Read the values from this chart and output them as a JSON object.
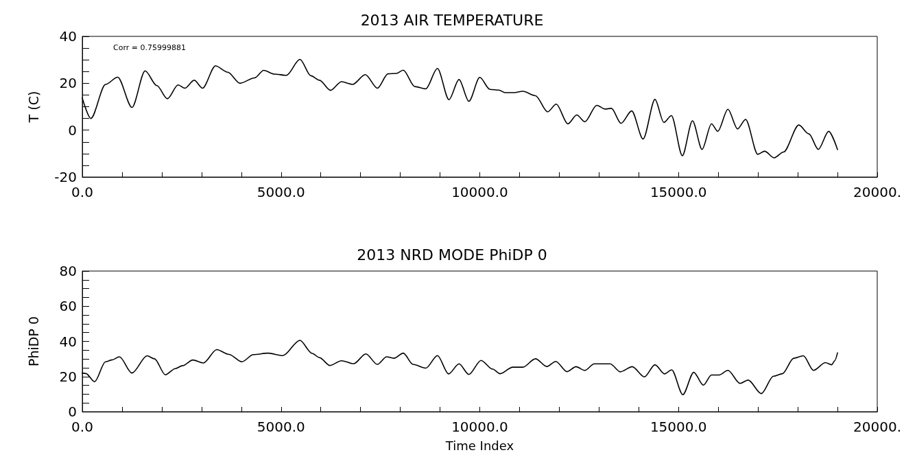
{
  "chart_data": [
    {
      "type": "line",
      "title": "2013 AIR TEMPERATURE",
      "ylabel": "T (C)",
      "color": "#000000",
      "marker": "none",
      "line_style": "solid",
      "annotations": [
        "Corr = 0.75999881"
      ],
      "xlim": [
        0,
        20000
      ],
      "ylim": [
        -20,
        40
      ],
      "xticks": [
        {
          "value": 0,
          "label": "0.0"
        },
        {
          "value": 1000,
          "label": null
        },
        {
          "value": 2000,
          "label": null
        },
        {
          "value": 3000,
          "label": null
        },
        {
          "value": 4000,
          "label": null
        },
        {
          "value": 5000,
          "label": "5000.0"
        },
        {
          "value": 6000,
          "label": null
        },
        {
          "value": 7000,
          "label": null
        },
        {
          "value": 8000,
          "label": null
        },
        {
          "value": 9000,
          "label": null
        },
        {
          "value": 10000,
          "label": "10000.0"
        },
        {
          "value": 11000,
          "label": null
        },
        {
          "value": 12000,
          "label": null
        },
        {
          "value": 13000,
          "label": null
        },
        {
          "value": 14000,
          "label": null
        },
        {
          "value": 15000,
          "label": "15000.0"
        },
        {
          "value": 16000,
          "label": null
        },
        {
          "value": 17000,
          "label": null
        },
        {
          "value": 18000,
          "label": null
        },
        {
          "value": 19000,
          "label": null
        },
        {
          "value": 20000,
          "label": "20000."
        }
      ],
      "yticks": [
        -20,
        {
          "value": -15,
          "label": null
        },
        {
          "value": -10,
          "label": null
        },
        {
          "value": -5,
          "label": null
        },
        0,
        {
          "value": 5,
          "label": null
        },
        {
          "value": 10,
          "label": null
        },
        {
          "value": 15,
          "label": null
        },
        20,
        {
          "value": 25,
          "label": null
        },
        {
          "value": 30,
          "label": null
        },
        {
          "value": 35,
          "label": null
        },
        40
      ],
      "x": [
        0,
        215,
        585,
        890,
        1250,
        1580,
        1875,
        2140,
        2410,
        2580,
        2815,
        3025,
        3350,
        3660,
        3965,
        4335,
        4565,
        4830,
        5135,
        5475,
        5750,
        5965,
        6245,
        6520,
        6800,
        7120,
        7425,
        7690,
        7900,
        8075,
        8365,
        8640,
        8935,
        9225,
        9478,
        9726,
        10000,
        10255,
        10478,
        10637,
        10860,
        11083,
        11401,
        11707,
        11924,
        12217,
        12440,
        12644,
        12943,
        13153,
        13312,
        13554,
        13822,
        14109,
        14408,
        14631,
        14822,
        15096,
        15351,
        15593,
        15829,
        15988,
        16243,
        16485,
        16688,
        16994,
        17166,
        17408,
        17644,
        18026,
        18281,
        18517,
        18778,
        19000
      ],
      "values": [
        13.7,
        5,
        19.5,
        22.6,
        9.7,
        25.3,
        19,
        13.4,
        19.3,
        17.9,
        21.3,
        17.9,
        27.4,
        24.7,
        20,
        22.3,
        25.5,
        23.9,
        23.4,
        30.2,
        23.2,
        21.3,
        17,
        20.7,
        19.5,
        23.7,
        17.9,
        24,
        24.2,
        25.6,
        18.6,
        17.6,
        26.3,
        13,
        21.6,
        12.3,
        22.5,
        17.4,
        17.1,
        16,
        16,
        16.6,
        14.7,
        7.8,
        11.1,
        2.7,
        6.5,
        3.6,
        10.6,
        9,
        9.3,
        2.9,
        8.2,
        -3.8,
        13.1,
        3.3,
        6.2,
        -10.9,
        4,
        -8.2,
        2.7,
        -0.5,
        8.9,
        0.5,
        4.6,
        -10.3,
        -9,
        -11.8,
        -9.3,
        2.2,
        -1.6,
        -8.2,
        -0.5,
        -8.3
      ]
    },
    {
      "type": "line",
      "title": "2013 NRD MODE PhiDP 0",
      "xlabel": "Time Index",
      "ylabel": "PhiDP 0",
      "color": "#000000",
      "marker": "none",
      "line_style": "solid",
      "xlim": [
        0,
        20000
      ],
      "ylim": [
        0,
        80
      ],
      "xticks": [
        {
          "value": 0,
          "label": "0.0"
        },
        {
          "value": 1000,
          "label": null
        },
        {
          "value": 2000,
          "label": null
        },
        {
          "value": 3000,
          "label": null
        },
        {
          "value": 4000,
          "label": null
        },
        {
          "value": 5000,
          "label": "5000.0"
        },
        {
          "value": 6000,
          "label": null
        },
        {
          "value": 7000,
          "label": null
        },
        {
          "value": 8000,
          "label": null
        },
        {
          "value": 9000,
          "label": null
        },
        {
          "value": 10000,
          "label": "10000.0"
        },
        {
          "value": 11000,
          "label": null
        },
        {
          "value": 12000,
          "label": null
        },
        {
          "value": 13000,
          "label": null
        },
        {
          "value": 14000,
          "label": null
        },
        {
          "value": 15000,
          "label": "15000.0"
        },
        {
          "value": 16000,
          "label": null
        },
        {
          "value": 17000,
          "label": null
        },
        {
          "value": 18000,
          "label": null
        },
        {
          "value": 19000,
          "label": null
        },
        {
          "value": 20000,
          "label": "20000."
        }
      ],
      "yticks": [
        0,
        {
          "value": 5,
          "label": null
        },
        {
          "value": 10,
          "label": null
        },
        {
          "value": 15,
          "label": null
        },
        20,
        {
          "value": 25,
          "label": null
        },
        {
          "value": 30,
          "label": null
        },
        {
          "value": 35,
          "label": null
        },
        40,
        {
          "value": 45,
          "label": null
        },
        {
          "value": 50,
          "label": null
        },
        {
          "value": 55,
          "label": null
        },
        60,
        {
          "value": 65,
          "label": null
        },
        {
          "value": 70,
          "label": null
        },
        {
          "value": 75,
          "label": null
        },
        80
      ],
      "x": [
        0,
        92,
        308,
        585,
        738,
        935,
        1248,
        1630,
        1815,
        2090,
        2338,
        2522,
        2780,
        3045,
        3383,
        3690,
        4016,
        4305,
        4674,
        5043,
        5474,
        5781,
        5966,
        6230,
        6519,
        6827,
        7134,
        7423,
        7657,
        7841,
        8075,
        8321,
        8641,
        8936,
        9215,
        9478,
        9726,
        10032,
        10318,
        10510,
        10828,
        11083,
        11401,
        11688,
        11911,
        12198,
        12421,
        12644,
        12879,
        13281,
        13535,
        13835,
        14141,
        14408,
        14650,
        14828,
        15108,
        15383,
        15625,
        15829,
        16020,
        16243,
        16549,
        16752,
        17083,
        17389,
        17612,
        17898,
        18141,
        18396,
        18696,
        18854,
        18930,
        19000
      ],
      "values": [
        22,
        21.7,
        17.1,
        28.4,
        29.4,
        31.2,
        22,
        31.8,
        30.1,
        21,
        24.5,
        26.2,
        29.4,
        27.7,
        35.3,
        32.6,
        28.4,
        32.5,
        33.3,
        31.9,
        40.6,
        33.2,
        30.8,
        26.3,
        29,
        27.3,
        32.9,
        26.9,
        31.2,
        30.4,
        33.3,
        26.9,
        24.8,
        31.9,
        21.5,
        27.2,
        21.2,
        29.2,
        24.3,
        21.6,
        25.3,
        25.3,
        30.1,
        25.7,
        28.6,
        22.8,
        25.6,
        23.5,
        27.2,
        27.2,
        22.7,
        25.6,
        19.8,
        26.7,
        21.5,
        23.8,
        9.7,
        22.4,
        15.1,
        20.9,
        20.9,
        23.5,
        16.1,
        18,
        10.3,
        20.2,
        21.6,
        30.4,
        31.8,
        23.5,
        27.9,
        26.7,
        29,
        33.5
      ]
    }
  ]
}
